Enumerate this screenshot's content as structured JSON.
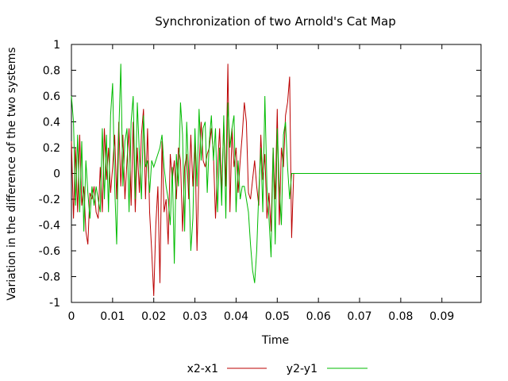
{
  "chart_data": {
    "type": "line",
    "title": "Synchronization of two Arnold's Cat Map",
    "xlabel": "Time",
    "ylabel": "Variation in the difference of the two systems",
    "xlim": [
      0,
      0.0995
    ],
    "ylim": [
      -1,
      1
    ],
    "x_ticks": [
      "0",
      "0.01",
      "0.02",
      "0.03",
      "0.04",
      "0.05",
      "0.06",
      "0.07",
      "0.08",
      "0.09"
    ],
    "x_tick_values": [
      0,
      0.01,
      0.02,
      0.03,
      0.04,
      0.05,
      0.06,
      0.07,
      0.08,
      0.09
    ],
    "y_ticks": [
      "1",
      "0.8",
      "0.6",
      "0.4",
      "0.2",
      "0",
      "-0.2",
      "-0.4",
      "-0.6",
      "-0.8",
      "-1"
    ],
    "y_tick_values": [
      1,
      0.8,
      0.6,
      0.4,
      0.2,
      0,
      -0.2,
      -0.4,
      -0.6,
      -0.8,
      -1
    ],
    "grid": false,
    "legend_position": "bottom",
    "series": [
      {
        "name": "x2-x1",
        "color": "#bb0000",
        "x": [
          0,
          0.0005,
          0.001,
          0.0015,
          0.002,
          0.0025,
          0.003,
          0.0035,
          0.004,
          0.0045,
          0.005,
          0.0055,
          0.006,
          0.0065,
          0.007,
          0.0075,
          0.008,
          0.0085,
          0.009,
          0.0095,
          0.01,
          0.0105,
          0.011,
          0.0115,
          0.012,
          0.0125,
          0.013,
          0.0135,
          0.014,
          0.0145,
          0.015,
          0.0155,
          0.016,
          0.0165,
          0.017,
          0.0175,
          0.018,
          0.0185,
          0.019,
          0.0195,
          0.02,
          0.0205,
          0.021,
          0.0215,
          0.022,
          0.0225,
          0.023,
          0.0235,
          0.024,
          0.0245,
          0.025,
          0.0255,
          0.026,
          0.0265,
          0.027,
          0.0275,
          0.028,
          0.0285,
          0.029,
          0.0295,
          0.03,
          0.0305,
          0.031,
          0.0315,
          0.032,
          0.0325,
          0.033,
          0.0335,
          0.034,
          0.0345,
          0.035,
          0.0355,
          0.036,
          0.0365,
          0.037,
          0.0375,
          0.038,
          0.0385,
          0.039,
          0.0395,
          0.04,
          0.0405,
          0.041,
          0.0415,
          0.042,
          0.0425,
          0.043,
          0.0435,
          0.044,
          0.0445,
          0.045,
          0.0455,
          0.046,
          0.0465,
          0.047,
          0.0475,
          0.048,
          0.0485,
          0.049,
          0.0495,
          0.05,
          0.0505,
          0.051,
          0.0515,
          0.052,
          0.0525,
          0.053,
          0.0535,
          0.054,
          0.0545,
          0.0995
        ],
        "values": [
          0.25,
          -0.35,
          0.2,
          -0.3,
          0.3,
          -0.25,
          -0.1,
          -0.45,
          -0.55,
          -0.15,
          -0.2,
          -0.1,
          -0.3,
          -0.35,
          0.05,
          -0.3,
          0.35,
          -0.05,
          0.2,
          -0.15,
          0.05,
          0.3,
          -0.2,
          0.4,
          -0.1,
          0.3,
          -0.2,
          0.1,
          0.35,
          -0.25,
          0.4,
          -0.3,
          0.2,
          -0.15,
          0.3,
          0.5,
          -0.2,
          0.35,
          -0.3,
          -0.6,
          -0.95,
          -0.4,
          -0.1,
          -0.85,
          0.25,
          -0.3,
          -0.2,
          -0.55,
          0.15,
          -0.05,
          0.1,
          -0.2,
          0.2,
          0.1,
          -0.45,
          0.05,
          0.15,
          -0.2,
          0.3,
          -0.1,
          0.25,
          -0.6,
          0.05,
          0.4,
          0.1,
          0.05,
          0.15,
          0.2,
          0.35,
          0.15,
          -0.35,
          0.05,
          0.35,
          -0.15,
          0.4,
          -0.1,
          0.85,
          -0.3,
          0.35,
          0.05,
          0.2,
          -0.15,
          0.1,
          0.3,
          0.55,
          0.4,
          -0.15,
          -0.2,
          -0.05,
          0.1,
          -0.1,
          -0.25,
          0.3,
          -0.05,
          0.15,
          -0.35,
          -0.15,
          -0.45,
          0.2,
          -0.2,
          0.5,
          -0.4,
          0.2,
          0.05,
          0.45,
          0.55,
          0.75,
          -0.5,
          0.0,
          0.0,
          0.0
        ]
      },
      {
        "name": "y2-y1",
        "color": "#00bb00",
        "x": [
          0,
          0.0005,
          0.001,
          0.0015,
          0.002,
          0.0025,
          0.003,
          0.0035,
          0.004,
          0.0045,
          0.005,
          0.0055,
          0.006,
          0.0065,
          0.007,
          0.0075,
          0.008,
          0.0085,
          0.009,
          0.0095,
          0.01,
          0.0105,
          0.011,
          0.0115,
          0.012,
          0.0125,
          0.013,
          0.0135,
          0.014,
          0.0145,
          0.015,
          0.0155,
          0.016,
          0.0165,
          0.017,
          0.0175,
          0.018,
          0.0185,
          0.019,
          0.0195,
          0.02,
          0.0205,
          0.021,
          0.0215,
          0.022,
          0.0225,
          0.023,
          0.0235,
          0.024,
          0.0245,
          0.025,
          0.0255,
          0.026,
          0.0265,
          0.027,
          0.0275,
          0.028,
          0.0285,
          0.029,
          0.0295,
          0.03,
          0.0305,
          0.031,
          0.0315,
          0.032,
          0.0325,
          0.033,
          0.0335,
          0.034,
          0.0345,
          0.035,
          0.0355,
          0.036,
          0.0365,
          0.037,
          0.0375,
          0.038,
          0.0385,
          0.039,
          0.0395,
          0.04,
          0.0405,
          0.041,
          0.0415,
          0.042,
          0.0425,
          0.043,
          0.0435,
          0.044,
          0.0445,
          0.045,
          0.0455,
          0.046,
          0.0465,
          0.047,
          0.0475,
          0.048,
          0.0485,
          0.049,
          0.0495,
          0.05,
          0.0505,
          0.051,
          0.0515,
          0.052,
          0.0525,
          0.053,
          0.0535,
          0.054,
          0.0545,
          0.0995
        ],
        "values": [
          0.6,
          0.4,
          -0.25,
          0.3,
          -0.3,
          0.25,
          -0.45,
          0.1,
          -0.15,
          -0.35,
          -0.1,
          -0.25,
          -0.1,
          -0.2,
          -0.3,
          0.35,
          -0.2,
          0.3,
          -0.3,
          0.45,
          0.7,
          -0.1,
          -0.55,
          0.3,
          0.85,
          -0.1,
          0.25,
          0.35,
          -0.3,
          0.4,
          0.6,
          -0.2,
          0.55,
          0.15,
          -0.2,
          0.45,
          0.05,
          0.1,
          -0.15,
          0.1,
          0.05,
          0.1,
          0.15,
          0.2,
          0.3,
          0.05,
          -0.1,
          -0.2,
          -0.4,
          0.05,
          -0.7,
          0.15,
          -0.1,
          0.55,
          0.3,
          -0.45,
          0.4,
          0.0,
          -0.6,
          -0.35,
          0.35,
          -0.1,
          0.5,
          0.1,
          0.35,
          0.4,
          -0.15,
          0.25,
          0.45,
          0.1,
          0.35,
          -0.3,
          0.2,
          -0.25,
          0.45,
          -0.35,
          0.55,
          0.2,
          0.35,
          0.45,
          -0.3,
          0.1,
          -0.2,
          -0.1,
          -0.1,
          -0.2,
          -0.3,
          -0.55,
          -0.75,
          -0.85,
          -0.6,
          -0.15,
          0.2,
          -0.3,
          0.6,
          -0.1,
          -0.35,
          -0.65,
          0.2,
          -0.55,
          0.35,
          -0.1,
          -0.4,
          0.3,
          0.4,
          0.05,
          -0.2,
          0.0,
          0.0,
          0.0,
          0.0
        ]
      }
    ]
  }
}
